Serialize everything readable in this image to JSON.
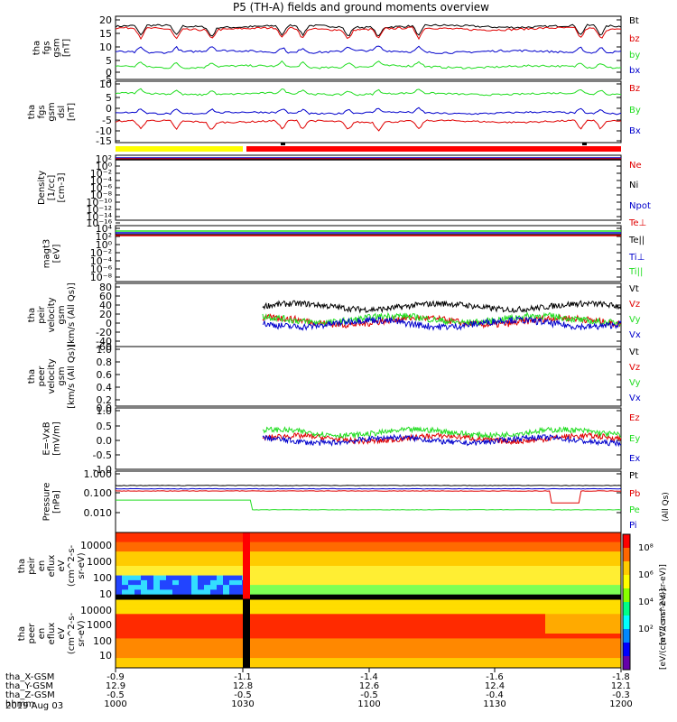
{
  "title": "P5 (TH-A) fields and ground moments overview",
  "date_label": "2019 Aug 03",
  "colors": {
    "black": "#000000",
    "red": "#e00000",
    "green": "#22dd22",
    "blue": "#0000cc",
    "yellow": "#ffff00",
    "bar_red": "#ff0000"
  },
  "x_axis": {
    "rows": [
      {
        "label": "tha_X-GSM",
        "values": [
          "-0.9",
          "-1.1",
          "-1.4",
          "-1.6",
          "-1.8"
        ]
      },
      {
        "label": "tha_Y-GSM",
        "values": [
          "12.9",
          "12.8",
          "12.6",
          "12.4",
          "12.1"
        ]
      },
      {
        "label": "tha_Z-GSM",
        "values": [
          "-0.5",
          "-0.5",
          "-0.5",
          "-0.4",
          "-0.3"
        ]
      },
      {
        "label": "hhmm",
        "values": [
          "1000",
          "1030",
          "1100",
          "1130",
          "1200"
        ]
      }
    ]
  },
  "status_bar": {
    "yellow_until_hhmm": "1030",
    "red_from_hhmm": "1030"
  },
  "chart_data": [
    {
      "type": "line",
      "ylabel": [
        "tha",
        "fgs",
        "gsm",
        "[nT]"
      ],
      "yticks": [
        "20",
        "15",
        "10",
        "5",
        "0",
        "-5"
      ],
      "ylim": [
        -5,
        20
      ],
      "series": [
        {
          "name": "Bt",
          "color": "#000000",
          "approx": 16
        },
        {
          "name": "bz",
          "color": "#e00000",
          "approx": 15
        },
        {
          "name": "by",
          "color": "#22dd22",
          "approx": 0
        },
        {
          "name": "bx",
          "color": "#0000cc",
          "approx": 6
        }
      ]
    },
    {
      "type": "line",
      "ylabel": [
        "tha",
        "fgs",
        "gsm",
        "dsl",
        "[nT]"
      ],
      "yticks": [
        "10",
        "5",
        "0",
        "-5",
        "-10",
        "-15"
      ],
      "ylim": [
        -17,
        12
      ],
      "series": [
        {
          "name": "Bz",
          "color": "#e00000",
          "approx": -7
        },
        {
          "name": "By",
          "color": "#22dd22",
          "approx": 6
        },
        {
          "name": "Bx",
          "color": "#0000cc",
          "approx": -3
        }
      ]
    },
    {
      "type": "line",
      "ylabel": [
        "Density",
        "[1/cc]",
        "[cm-3]"
      ],
      "yticks": [
        "10²",
        "10⁰",
        "10⁻²",
        "10⁻⁴",
        "10⁻⁶",
        "10⁻⁸",
        "10⁻¹⁰",
        "10⁻¹²",
        "10⁻¹⁴",
        "10⁻¹⁶"
      ],
      "scale": "log",
      "series": [
        {
          "name": "Ne",
          "color": "#e00000"
        },
        {
          "name": "Ni",
          "color": "#000000"
        },
        {
          "name": "Npot",
          "color": "#0000cc"
        }
      ]
    },
    {
      "type": "line",
      "ylabel": [
        "magt3",
        "[eV]"
      ],
      "yticks": [
        "10⁴",
        "10²",
        "10⁰",
        "10⁻²",
        "10⁻⁴",
        "10⁻⁶",
        "10⁻⁸"
      ],
      "scale": "log",
      "series": [
        {
          "name": "Te⊥",
          "color": "#e00000"
        },
        {
          "name": "Te||",
          "color": "#000000"
        },
        {
          "name": "Ti⊥",
          "color": "#0000cc"
        },
        {
          "name": "Ti||",
          "color": "#22dd22"
        }
      ]
    },
    {
      "type": "line",
      "ylabel": [
        "tha",
        "peir",
        "velocity",
        "gsm",
        "[km/s (All Qs)]"
      ],
      "yticks": [
        "80",
        "60",
        "40",
        "20",
        "0",
        "-20",
        "-40",
        "-60"
      ],
      "ylim": [
        -60,
        90
      ],
      "series": [
        {
          "name": "Vt",
          "color": "#000000",
          "approx": 35
        },
        {
          "name": "Vz",
          "color": "#e00000",
          "approx": 0
        },
        {
          "name": "Vy",
          "color": "#22dd22",
          "approx": 5
        },
        {
          "name": "Vx",
          "color": "#0000cc",
          "approx": -5
        }
      ]
    },
    {
      "type": "line",
      "ylabel": [
        "tha",
        "peer",
        "velocity",
        "gsm",
        "[km/s (All Qs)]"
      ],
      "yticks": [
        "1.0",
        "0.8",
        "0.6",
        "0.4",
        "0.2",
        "0.0"
      ],
      "ylim": [
        0,
        1
      ],
      "series": [
        {
          "name": "Vt",
          "color": "#000000"
        },
        {
          "name": "Vz",
          "color": "#e00000"
        },
        {
          "name": "Vy",
          "color": "#22dd22"
        },
        {
          "name": "Vx",
          "color": "#0000cc"
        }
      ]
    },
    {
      "type": "line",
      "ylabel": [
        "E=-VxB",
        "[mV/m]"
      ],
      "yticks": [
        "1.0",
        "0.5",
        "0.0",
        "-0.5",
        "-1.0"
      ],
      "ylim": [
        -1,
        1
      ],
      "series": [
        {
          "name": "Ez",
          "color": "#e00000",
          "approx": 0
        },
        {
          "name": "Ey",
          "color": "#22dd22",
          "approx": 0.2
        },
        {
          "name": "Ex",
          "color": "#0000cc",
          "approx": -0.05
        }
      ]
    },
    {
      "type": "line",
      "ylabel": [
        "Pressure",
        "[nPa]"
      ],
      "yticks": [
        "1.000",
        "0.100",
        "0.010"
      ],
      "scale": "log",
      "ylim": [
        0.003,
        1.5
      ],
      "series": [
        {
          "name": "Pt",
          "color": "#000000",
          "approx": 0.35
        },
        {
          "name": "Pb",
          "color": "#e00000",
          "approx": 0.2
        },
        {
          "name": "Pe",
          "color": "#22dd22",
          "approx": 0.03
        },
        {
          "name": "Pi",
          "color": "#0000cc",
          "approx": 0.25
        }
      ],
      "right_note": "(All Qs)"
    },
    {
      "type": "heatmap",
      "ylabel": [
        "tha",
        "peir",
        "en",
        "eflux",
        "eV",
        "(cm^2-s-",
        "sr-eV)"
      ],
      "yticks": [
        "10000",
        "1000",
        "100",
        "10"
      ],
      "scale": "log"
    },
    {
      "type": "heatmap",
      "ylabel": [
        "tha",
        "peer",
        "en",
        "eflux",
        "eV",
        "(cm^2-s-",
        "sr-eV)"
      ],
      "yticks": [
        "10000",
        "1000",
        "100",
        "10"
      ],
      "scale": "log"
    }
  ],
  "colorbar": {
    "ticks": [
      "10⁸",
      "10⁶",
      "10⁴",
      "10²"
    ],
    "label": "[eV/(cm^2-s-sr-eV)]",
    "right_label": "[eV/(cm^2-s-sr-eV)]"
  }
}
